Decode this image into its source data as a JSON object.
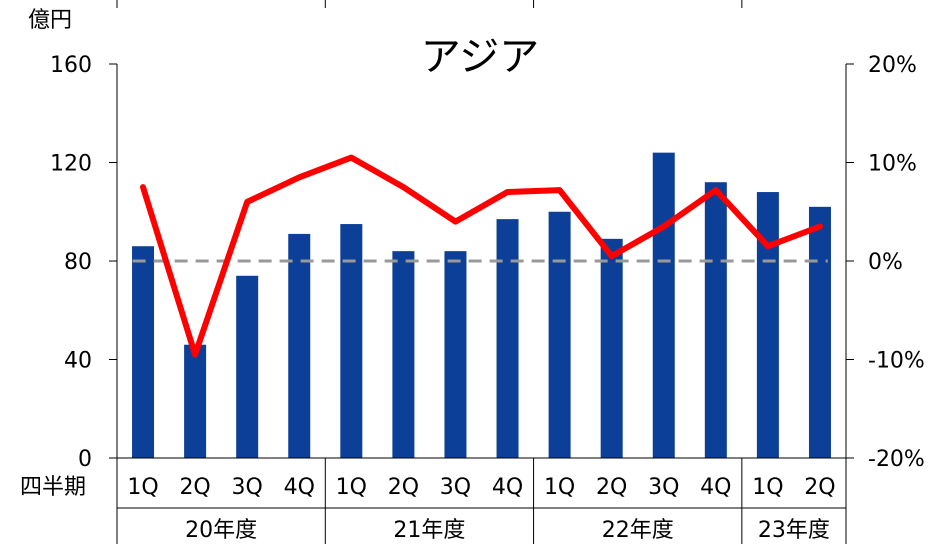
{
  "chart_data": {
    "type": "bar",
    "title": "アジア",
    "y_unit_label": "億円",
    "row_label": "四半期",
    "categories": [
      "1Q",
      "2Q",
      "3Q",
      "4Q",
      "1Q",
      "2Q",
      "3Q",
      "4Q",
      "1Q",
      "2Q",
      "3Q",
      "4Q",
      "1Q",
      "2Q"
    ],
    "fiscal_years": [
      {
        "label": "20年度",
        "count": 4
      },
      {
        "label": "21年度",
        "count": 4
      },
      {
        "label": "22年度",
        "count": 4
      },
      {
        "label": "23年度",
        "count": 2
      }
    ],
    "series": [
      {
        "kind": "bar",
        "axis": "left",
        "color": "#0c3f98",
        "values": [
          86,
          46,
          74,
          91,
          95,
          84,
          84,
          97,
          100,
          89,
          124,
          112,
          108,
          102
        ]
      },
      {
        "kind": "line",
        "axis": "right",
        "color": "#ff0000",
        "values": [
          7.5,
          -9.5,
          6,
          8.5,
          10.5,
          7.5,
          4,
          7,
          7.2,
          0.5,
          3.5,
          7.2,
          1.5,
          3.5
        ]
      }
    ],
    "y_left": {
      "min": 0,
      "max": 160,
      "ticks": [
        0,
        40,
        80,
        120,
        160
      ]
    },
    "y_right": {
      "min": -20,
      "max": 20,
      "ticks": [
        -20,
        -10,
        0,
        10,
        20
      ],
      "tick_labels": [
        "-20%",
        "-10%",
        "0%",
        "10%",
        "20%"
      ]
    },
    "reference_line": {
      "axis": "right",
      "value": 0,
      "color": "#999999",
      "style": "dashed"
    }
  }
}
